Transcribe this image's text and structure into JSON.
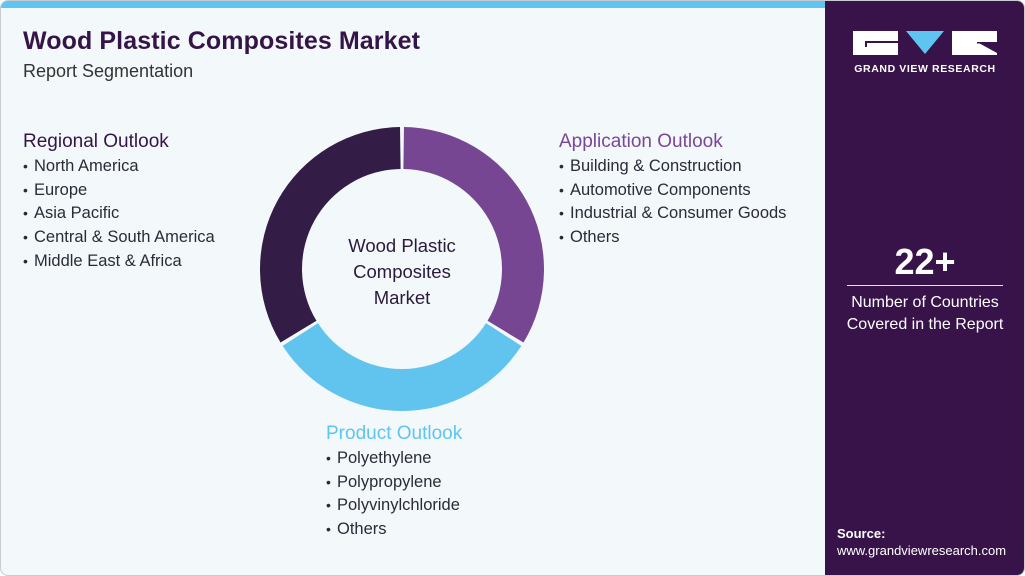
{
  "header": {
    "title": "Wood Plastic Composites Market",
    "subtitle": "Report Segmentation"
  },
  "donut": {
    "center_label_lines": [
      "Wood Plastic",
      "Composites",
      "Market"
    ],
    "segments": [
      {
        "name": "Application Outlook",
        "color": "#774692",
        "start_deg": 0,
        "end_deg": 122
      },
      {
        "name": "Product Outlook",
        "color": "#61c4ef",
        "start_deg": 122,
        "end_deg": 238
      },
      {
        "name": "Regional Outlook",
        "color": "#331d47",
        "start_deg": 238,
        "end_deg": 360
      }
    ]
  },
  "segments": {
    "regional": {
      "heading": "Regional Outlook",
      "items": [
        "North America",
        "Europe",
        "Asia Pacific",
        "Central & South America",
        "Middle East & Africa"
      ]
    },
    "application": {
      "heading": "Application Outlook",
      "items": [
        "Building & Construction",
        "Automotive Components",
        "Industrial & Consumer Goods",
        "Others"
      ]
    },
    "product": {
      "heading": "Product Outlook",
      "items": [
        "Polyethylene",
        "Polypropylene",
        "Polyvinylchloride",
        "Others"
      ]
    }
  },
  "sidebar": {
    "brand": "GRAND VIEW RESEARCH",
    "stat_value": "22+",
    "stat_desc_line1": "Number of Countries",
    "stat_desc_line2": "Covered in the Report",
    "source_label": "Source:",
    "source_url": "www.grandviewresearch.com"
  },
  "colors": {
    "dark_purple": "#371349",
    "purple": "#774692",
    "light_blue": "#5ec5f0",
    "background": "#f3f8fb"
  }
}
